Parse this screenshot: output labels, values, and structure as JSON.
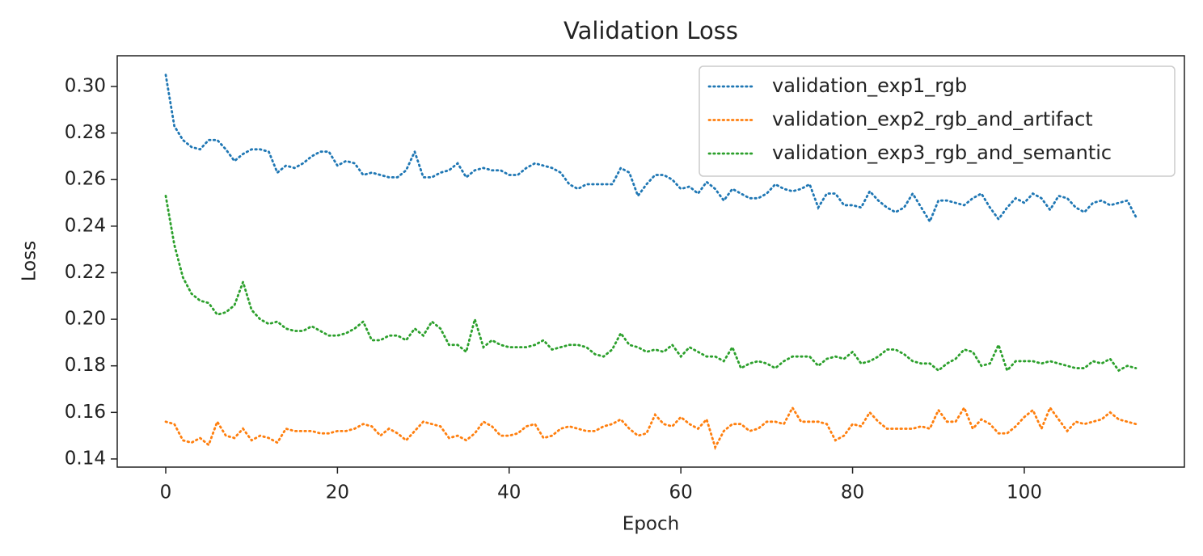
{
  "chart_data": {
    "type": "line",
    "title": "Validation Loss",
    "x_label": "Epoch",
    "y_label": "Loss",
    "legend": "upper right",
    "grid": false,
    "line_style": "dotted",
    "xlim": [
      -5.65,
      118.65
    ],
    "ylim": [
      0.1365,
      0.3132
    ],
    "xticks": [
      0,
      20,
      40,
      60,
      80,
      100
    ],
    "yticks": [
      0.14,
      0.16,
      0.18,
      {
        "value": 0.2,
        "label": "0.20"
      },
      0.22,
      0.24,
      0.26,
      0.28,
      {
        "value": 0.3,
        "label": "0.30"
      }
    ],
    "x": [
      0,
      1,
      2,
      3,
      4,
      5,
      6,
      7,
      8,
      9,
      10,
      11,
      12,
      13,
      14,
      15,
      16,
      17,
      18,
      19,
      20,
      21,
      22,
      23,
      24,
      25,
      26,
      27,
      28,
      29,
      30,
      31,
      32,
      33,
      34,
      35,
      36,
      37,
      38,
      39,
      40,
      41,
      42,
      43,
      44,
      45,
      46,
      47,
      48,
      49,
      50,
      51,
      52,
      53,
      54,
      55,
      56,
      57,
      58,
      59,
      60,
      61,
      62,
      63,
      64,
      65,
      66,
      67,
      68,
      69,
      70,
      71,
      72,
      73,
      74,
      75,
      76,
      77,
      78,
      79,
      80,
      81,
      82,
      83,
      84,
      85,
      86,
      87,
      88,
      89,
      90,
      91,
      92,
      93,
      94,
      95,
      96,
      97,
      98,
      99,
      100,
      101,
      102,
      103,
      104,
      105,
      106,
      107,
      108,
      109,
      110,
      111,
      112,
      113
    ],
    "series": [
      {
        "name": "validation_exp1_rgb",
        "color": "#1f77b4",
        "values": [
          0.305,
          0.283,
          0.277,
          0.274,
          0.273,
          0.277,
          0.277,
          0.273,
          0.268,
          0.271,
          0.273,
          0.273,
          0.272,
          0.263,
          0.266,
          0.265,
          0.267,
          0.27,
          0.272,
          0.272,
          0.266,
          0.268,
          0.267,
          0.262,
          0.263,
          0.262,
          0.261,
          0.261,
          0.264,
          0.272,
          0.261,
          0.261,
          0.263,
          0.264,
          0.267,
          0.261,
          0.264,
          0.265,
          0.264,
          0.264,
          0.262,
          0.262,
          0.265,
          0.267,
          0.266,
          0.265,
          0.263,
          0.258,
          0.256,
          0.258,
          0.258,
          0.258,
          0.258,
          0.265,
          0.263,
          0.253,
          0.258,
          0.262,
          0.262,
          0.26,
          0.256,
          0.257,
          0.254,
          0.259,
          0.256,
          0.251,
          0.256,
          0.254,
          0.252,
          0.252,
          0.254,
          0.258,
          0.256,
          0.255,
          0.256,
          0.258,
          0.248,
          0.254,
          0.254,
          0.249,
          0.249,
          0.248,
          0.255,
          0.251,
          0.248,
          0.246,
          0.248,
          0.254,
          0.248,
          0.242,
          0.251,
          0.251,
          0.25,
          0.249,
          0.252,
          0.254,
          0.248,
          0.243,
          0.248,
          0.252,
          0.25,
          0.254,
          0.252,
          0.247,
          0.253,
          0.252,
          0.248,
          0.246,
          0.25,
          0.251,
          0.249,
          0.25,
          0.251,
          0.244
        ]
      },
      {
        "name": "validation_exp2_rgb_and_artifact",
        "color": "#ff7f0e",
        "values": [
          0.156,
          0.155,
          0.148,
          0.147,
          0.149,
          0.146,
          0.156,
          0.15,
          0.149,
          0.153,
          0.148,
          0.15,
          0.149,
          0.147,
          0.153,
          0.152,
          0.152,
          0.152,
          0.151,
          0.151,
          0.152,
          0.152,
          0.153,
          0.155,
          0.154,
          0.15,
          0.153,
          0.151,
          0.148,
          0.152,
          0.156,
          0.155,
          0.154,
          0.149,
          0.15,
          0.148,
          0.151,
          0.156,
          0.154,
          0.15,
          0.15,
          0.151,
          0.154,
          0.155,
          0.149,
          0.15,
          0.153,
          0.154,
          0.153,
          0.152,
          0.152,
          0.154,
          0.155,
          0.157,
          0.153,
          0.15,
          0.151,
          0.159,
          0.155,
          0.154,
          0.158,
          0.155,
          0.153,
          0.157,
          0.145,
          0.152,
          0.155,
          0.155,
          0.152,
          0.153,
          0.156,
          0.156,
          0.155,
          0.162,
          0.156,
          0.156,
          0.156,
          0.155,
          0.148,
          0.15,
          0.155,
          0.154,
          0.16,
          0.156,
          0.153,
          0.153,
          0.153,
          0.153,
          0.154,
          0.153,
          0.161,
          0.156,
          0.156,
          0.162,
          0.153,
          0.157,
          0.155,
          0.151,
          0.151,
          0.154,
          0.158,
          0.161,
          0.153,
          0.162,
          0.157,
          0.152,
          0.156,
          0.155,
          0.156,
          0.157,
          0.16,
          0.157,
          0.156,
          0.155
        ]
      },
      {
        "name": "validation_exp3_rgb_and_semantic",
        "color": "#2ca02c",
        "values": [
          0.253,
          0.232,
          0.218,
          0.211,
          0.208,
          0.207,
          0.202,
          0.203,
          0.206,
          0.216,
          0.204,
          0.2,
          0.198,
          0.199,
          0.196,
          0.195,
          0.195,
          0.197,
          0.195,
          0.193,
          0.193,
          0.194,
          0.196,
          0.199,
          0.191,
          0.191,
          0.193,
          0.193,
          0.191,
          0.196,
          0.193,
          0.199,
          0.196,
          0.189,
          0.189,
          0.186,
          0.2,
          0.188,
          0.191,
          0.189,
          0.188,
          0.188,
          0.188,
          0.189,
          0.191,
          0.187,
          0.188,
          0.189,
          0.189,
          0.188,
          0.185,
          0.184,
          0.187,
          0.194,
          0.189,
          0.188,
          0.186,
          0.187,
          0.186,
          0.189,
          0.184,
          0.188,
          0.186,
          0.184,
          0.184,
          0.182,
          0.188,
          0.179,
          0.181,
          0.182,
          0.181,
          0.179,
          0.182,
          0.184,
          0.184,
          0.184,
          0.18,
          0.183,
          0.184,
          0.183,
          0.186,
          0.181,
          0.182,
          0.184,
          0.187,
          0.187,
          0.185,
          0.182,
          0.181,
          0.181,
          0.178,
          0.181,
          0.183,
          0.187,
          0.186,
          0.18,
          0.181,
          0.189,
          0.178,
          0.182,
          0.182,
          0.182,
          0.181,
          0.182,
          0.181,
          0.18,
          0.179,
          0.179,
          0.182,
          0.181,
          0.183,
          0.178,
          0.18,
          0.179
        ]
      }
    ]
  }
}
